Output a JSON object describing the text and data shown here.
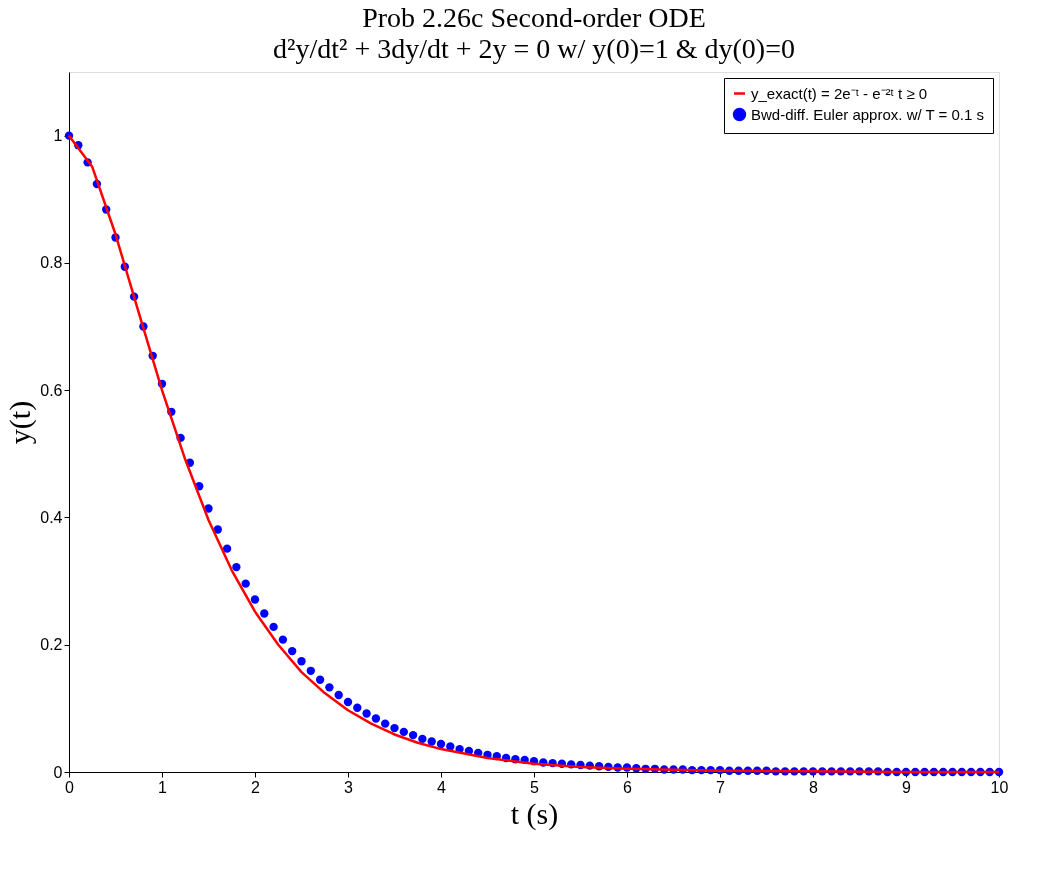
{
  "chart_data": {
    "type": "line",
    "title": "Prob 2.26c Second-order ODE",
    "subtitle": "d²y/dt² + 3dy/dt + 2y = 0 w/ y(0)=1 & dy(0)=0",
    "xlabel": "t (s)",
    "ylabel": "y(t)",
    "xlim": [
      0,
      10
    ],
    "ylim": [
      0,
      1.1
    ],
    "xticks": [
      0,
      1,
      2,
      3,
      4,
      5,
      6,
      7,
      8,
      9,
      10
    ],
    "yticks": [
      0,
      0.2,
      0.4,
      0.6,
      0.8,
      1
    ],
    "grid": false,
    "legend": "top right",
    "series": [
      {
        "name": "y_exact(t) = 2e⁻ᵗ - e⁻²ᵗ  t ≥ 0",
        "type": "line",
        "color": "#ff0000",
        "marker": "none",
        "line_style": "solid",
        "x": [
          0,
          0.25,
          0.5,
          0.75,
          1,
          1.25,
          1.5,
          1.75,
          2,
          2.25,
          2.5,
          2.75,
          3,
          3.25,
          3.5,
          3.75,
          4,
          4.5,
          5,
          5.5,
          6,
          7,
          8,
          9,
          10
        ],
        "values": [
          1,
          0.951,
          0.845,
          0.722,
          0.6,
          0.491,
          0.396,
          0.317,
          0.252,
          0.2,
          0.157,
          0.124,
          0.097,
          0.076,
          0.059,
          0.046,
          0.036,
          0.022,
          0.013,
          0.008,
          0.005,
          0.002,
          0.001,
          0,
          0
        ]
      },
      {
        "name": "Bwd-diff. Euler approx. w/ T = 0.1 s",
        "type": "scatter",
        "color": "#0000ff",
        "marker": "circle",
        "x": [
          0,
          0.1,
          0.2,
          0.3,
          0.4,
          0.5,
          0.6,
          0.7,
          0.8,
          0.9,
          1,
          1.1,
          1.2,
          1.3,
          1.4,
          1.5,
          1.6,
          1.7,
          1.8,
          1.9,
          2,
          2.1,
          2.2,
          2.3,
          2.4,
          2.5,
          2.6,
          2.7,
          2.8,
          2.9,
          3,
          3.1,
          3.2,
          3.3,
          3.4,
          3.5,
          3.6,
          3.7,
          3.8,
          3.9,
          4,
          4.1,
          4.2,
          4.3,
          4.4,
          4.5,
          4.6,
          4.7,
          4.8,
          4.9,
          5,
          5.1,
          5.2,
          5.3,
          5.4,
          5.5,
          5.6,
          5.7,
          5.8,
          5.9,
          6,
          6.1,
          6.2,
          6.3,
          6.4,
          6.5,
          6.6,
          6.7,
          6.8,
          6.9,
          7,
          7.1,
          7.2,
          7.3,
          7.4,
          7.5,
          7.6,
          7.7,
          7.8,
          7.9,
          8,
          8.1,
          8.2,
          8.3,
          8.4,
          8.5,
          8.6,
          8.7,
          8.8,
          8.9,
          9,
          9.1,
          9.2,
          9.3,
          9.4,
          9.5,
          9.6,
          9.7,
          9.8,
          9.9,
          10
        ],
        "values": [
          1,
          0.985,
          0.958,
          0.924,
          0.884,
          0.84,
          0.794,
          0.747,
          0.7,
          0.654,
          0.61,
          0.566,
          0.525,
          0.486,
          0.449,
          0.414,
          0.381,
          0.351,
          0.322,
          0.296,
          0.271,
          0.249,
          0.228,
          0.208,
          0.19,
          0.174,
          0.159,
          0.145,
          0.133,
          0.121,
          0.11,
          0.101,
          0.092,
          0.084,
          0.076,
          0.069,
          0.063,
          0.058,
          0.052,
          0.048,
          0.044,
          0.04,
          0.036,
          0.033,
          0.03,
          0.027,
          0.025,
          0.022,
          0.02,
          0.019,
          0.017,
          0.015,
          0.014,
          0.013,
          0.012,
          0.011,
          0.01,
          0.009,
          0.008,
          0.007,
          0.007,
          0.006,
          0.005,
          0.005,
          0.004,
          0.004,
          0.004,
          0.003,
          0.003,
          0.003,
          0.003,
          0.002,
          0.002,
          0.002,
          0.002,
          0.002,
          0.001,
          0.001,
          0.001,
          0.001,
          0.001,
          0.001,
          0.001,
          0.001,
          0.001,
          0.001,
          0.001,
          0.001,
          0,
          0,
          0,
          0,
          0,
          0,
          0,
          0,
          0,
          0,
          0,
          0,
          0
        ]
      }
    ]
  }
}
